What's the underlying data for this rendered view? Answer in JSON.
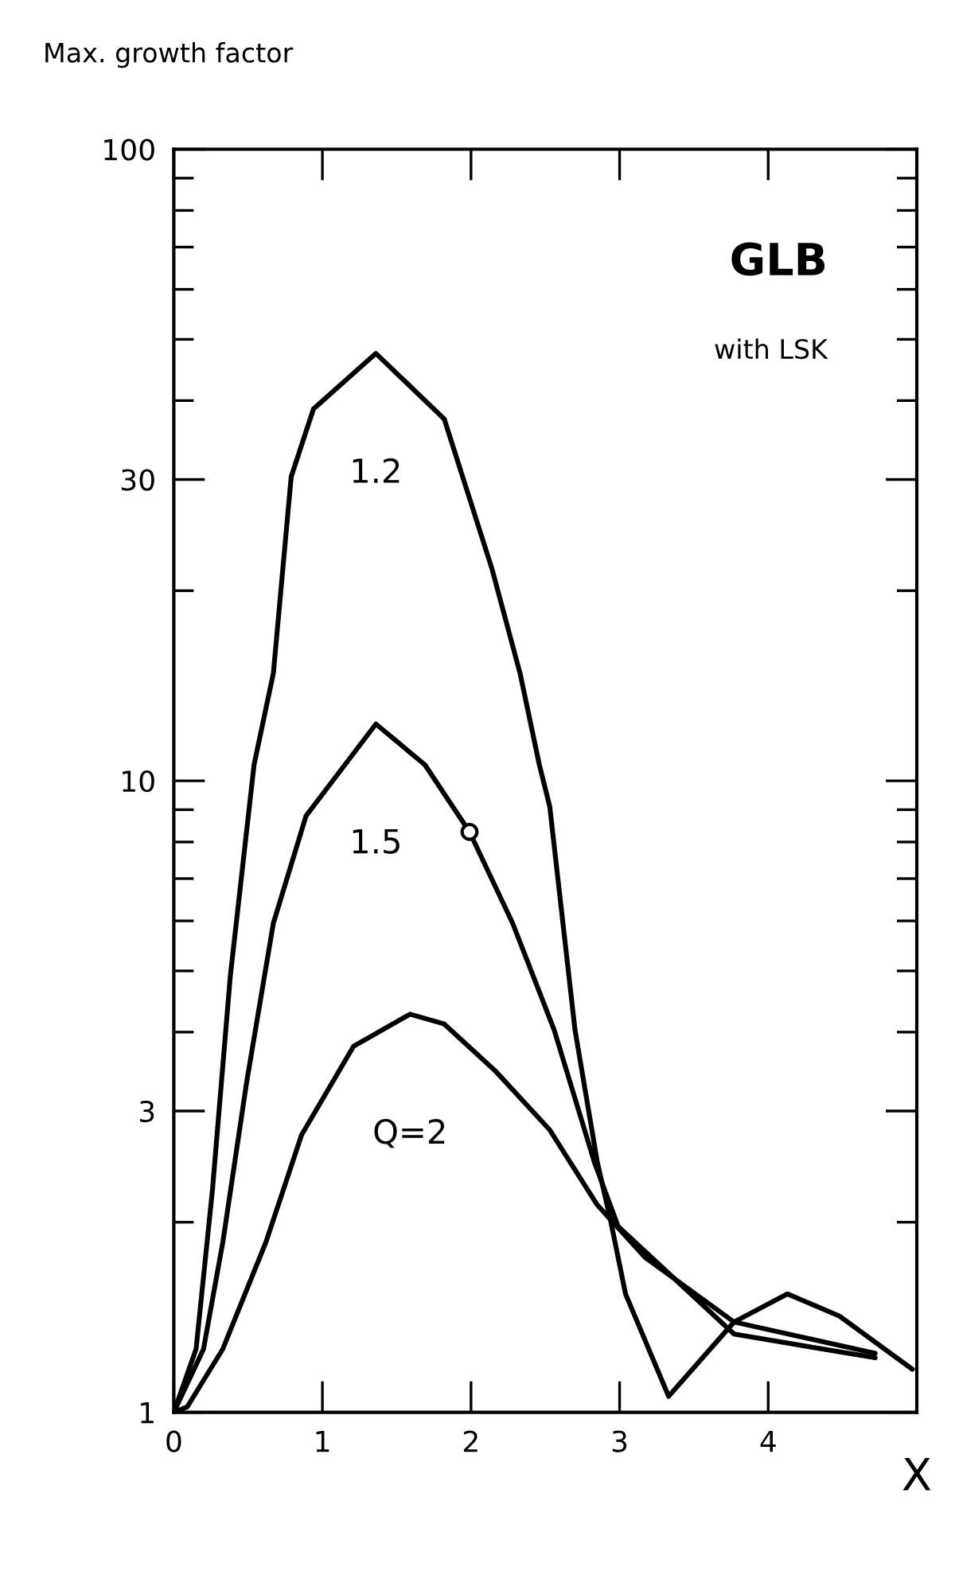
{
  "chart_data": {
    "type": "line",
    "title": "GLB",
    "subtitle": "with LSK",
    "ylabel": "Max. growth factor",
    "xlabel": "X",
    "log": "y",
    "xlim": [
      0,
      5
    ],
    "ylim": [
      1,
      100
    ],
    "xticks": [
      0,
      1,
      2,
      3,
      4
    ],
    "yticks": [
      1,
      3,
      10,
      30,
      100
    ],
    "grid": false,
    "legend": false,
    "line_style": "solid",
    "marker": "none",
    "series": [
      {
        "name": "1.2",
        "color": "#000000",
        "x": [
          0.0,
          0.15,
          0.26,
          0.38,
          0.54,
          0.67,
          0.79,
          0.94,
          1.36,
          1.82,
          2.14,
          2.33,
          2.46,
          2.53,
          2.7,
          2.85,
          2.94,
          3.04,
          3.33,
          3.77,
          4.13,
          4.48,
          4.97
        ],
        "values": [
          1.0,
          1.26,
          2.25,
          4.9,
          10.6,
          14.8,
          30.3,
          38.8,
          47.5,
          37.4,
          21.7,
          14.8,
          10.6,
          9.1,
          4.03,
          2.49,
          2.01,
          1.54,
          1.06,
          1.39,
          1.54,
          1.42,
          1.17
        ]
      },
      {
        "name": "1.5",
        "color": "#000000",
        "x": [
          0.0,
          0.2,
          0.33,
          0.49,
          0.67,
          0.89,
          1.36,
          1.69,
          1.99,
          2.28,
          2.56,
          2.83,
          2.99,
          3.77,
          4.72
        ],
        "values": [
          1.0,
          1.26,
          1.86,
          3.33,
          5.95,
          8.8,
          12.3,
          10.6,
          8.3,
          5.95,
          4.03,
          2.49,
          1.97,
          1.33,
          1.22
        ]
      },
      {
        "name": "Q=2",
        "color": "#000000",
        "x": [
          0.0,
          0.09,
          0.33,
          0.62,
          0.86,
          1.21,
          1.59,
          1.82,
          2.17,
          2.53,
          2.85,
          3.17,
          3.77,
          4.72
        ],
        "values": [
          1.0,
          1.02,
          1.26,
          1.86,
          2.75,
          3.8,
          4.27,
          4.12,
          3.46,
          2.8,
          2.13,
          1.76,
          1.39,
          1.24
        ]
      },
      {
        "type": "scatter",
        "marker": "circle",
        "color": "#000000",
        "x": [
          1.99
        ],
        "values": [
          8.3
        ]
      }
    ]
  }
}
